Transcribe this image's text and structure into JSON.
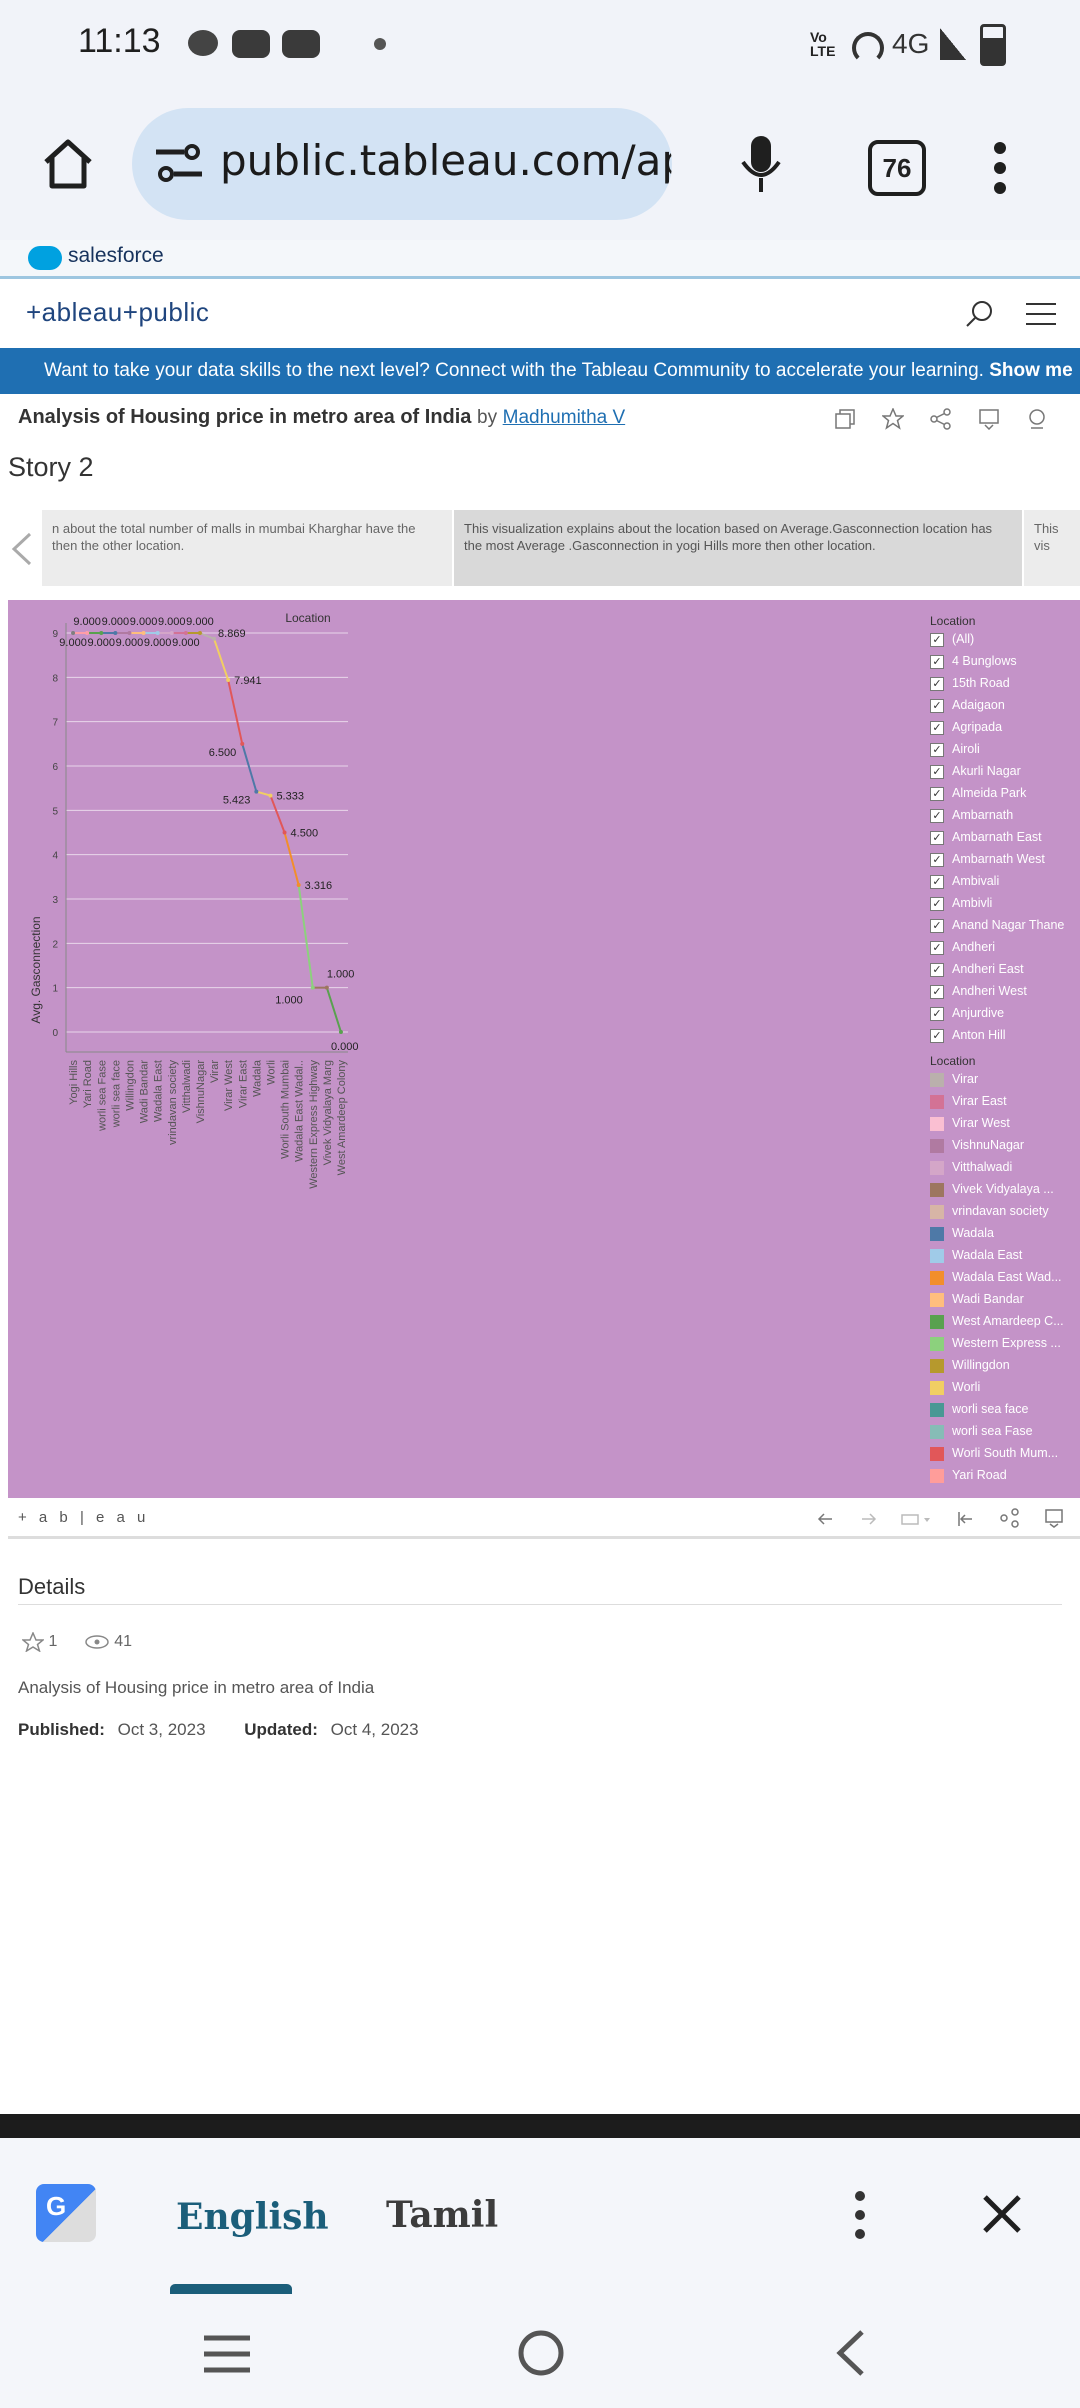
{
  "status": {
    "time": "11:13",
    "network": "4G",
    "lte": "Vo LTE"
  },
  "browser": {
    "url": "public.tableau.com/app/pr",
    "tab_count": "76"
  },
  "salesforce": {
    "label": "salesforce"
  },
  "tableau_header": {
    "logo": "+ableau+public"
  },
  "banner": {
    "text": "Want to take your data skills to the next level? Connect with the Tableau Community to accelerate your learning.",
    "cta": "Show me →"
  },
  "viz": {
    "title": "Analysis of Housing price in metro area of India",
    "by": "by",
    "author": "Madhumitha V"
  },
  "story": {
    "title": "Story 2",
    "points": [
      "n about the total number of malls in mumbai Kharghar have the then the other location.",
      "This visualization explains about the location based on Average.Gasconnection location has the most Average .Gasconnection in yogi Hills more then other location.",
      "This vis"
    ]
  },
  "chart_data": {
    "type": "line",
    "title": "Location",
    "ylabel": "Avg. Gasconnection",
    "ylim": [
      0,
      9
    ],
    "yticks": [
      0,
      1,
      2,
      3,
      4,
      5,
      6,
      7,
      8,
      9
    ],
    "categories": [
      "Yogi Hills",
      "Yari Road",
      "worli sea Fase",
      "worli sea face",
      "Willingdon",
      "Wadi Bandar",
      "Wadala East",
      "vrindavan society",
      "Vitthalwadi",
      "VishnuNagar",
      "Virar",
      "Virar West",
      "Virar East",
      "Wadala",
      "Worli",
      "Worli South Mumbai",
      "Wadala East Wadal..",
      "Western Express Highway",
      "Vivek Vidyalaya Marg",
      "West Amardeep Colony"
    ],
    "values": [
      9,
      9,
      9,
      9,
      9,
      9,
      9,
      9,
      9,
      9,
      8.869,
      7.941,
      6.5,
      5.423,
      5.333,
      4.5,
      3.316,
      1,
      1,
      0
    ],
    "data_labels": [
      "9.000",
      "9.000",
      "9.000",
      "9.000",
      "9.000",
      "9.000",
      "9.000",
      "9.000",
      "9.000",
      "9.000",
      "8.869",
      "7.941",
      "6.500",
      "5.423",
      "5.333",
      "4.500",
      "3.316",
      "1.000",
      "1.000",
      "0.000"
    ],
    "colors": [
      "#7f7f7f",
      "#ff9da7",
      "#59a14f",
      "#4e79a7",
      "#b07aa1",
      "#ffbe7d",
      "#a0cbe8",
      "#d4a6c8",
      "#d37295",
      "#b6992d",
      "#bab0ac",
      "#f1ce63",
      "#e15759",
      "#4e79a7",
      "#f1ce63",
      "#e15759",
      "#f28e2b",
      "#8cd17d",
      "#9d7660",
      "#59a14f"
    ],
    "grid": true
  },
  "legend_filter": {
    "title": "Location",
    "items": [
      "(All)",
      "4 Bunglows",
      "15th Road",
      "Adaigaon",
      "Agripada",
      "Airoli",
      "Akurli Nagar",
      "Almeida Park",
      "Ambarnath",
      "Ambarnath East",
      "Ambarnath West",
      "Ambivali",
      "Ambivli",
      "Anand Nagar Thane",
      "Andheri",
      "Andheri East",
      "Andheri West",
      "Anjurdive",
      "Anton Hill"
    ]
  },
  "legend_color": {
    "title": "Location",
    "items": [
      {
        "label": "Virar",
        "color": "#bab0ac"
      },
      {
        "label": "Virar East",
        "color": "#d37295"
      },
      {
        "label": "Virar West",
        "color": "#fabfd2"
      },
      {
        "label": "VishnuNagar",
        "color": "#b07aa1"
      },
      {
        "label": "Vitthalwadi",
        "color": "#d4a6c8"
      },
      {
        "label": "Vivek Vidyalaya ...",
        "color": "#9d7660"
      },
      {
        "label": "vrindavan society",
        "color": "#d7b5a6"
      },
      {
        "label": "Wadala",
        "color": "#4e79a7"
      },
      {
        "label": "Wadala East",
        "color": "#a0cbe8"
      },
      {
        "label": "Wadala East Wad...",
        "color": "#f28e2b"
      },
      {
        "label": "Wadi Bandar",
        "color": "#ffbe7d"
      },
      {
        "label": "West Amardeep C...",
        "color": "#59a14f"
      },
      {
        "label": "Western Express ...",
        "color": "#8cd17d"
      },
      {
        "label": "Willingdon",
        "color": "#b6992d"
      },
      {
        "label": "Worli",
        "color": "#f1ce63"
      },
      {
        "label": "worli sea face",
        "color": "#499894"
      },
      {
        "label": "worli sea Fase",
        "color": "#86bcb6"
      },
      {
        "label": "Worli South Mum...",
        "color": "#e15759"
      },
      {
        "label": "Yari Road",
        "color": "#ff9d9a"
      }
    ]
  },
  "toolbar": {
    "brand": "+ a b | e a u"
  },
  "details": {
    "title": "Details",
    "favorites": "1",
    "views": "41",
    "description": "Analysis of Housing price in metro area of India",
    "published_label": "Published:",
    "published": "Oct 3, 2023",
    "updated_label": "Updated:",
    "updated": "Oct 4, 2023"
  },
  "translate": {
    "lang_1": "English",
    "lang_2": "Tamil"
  }
}
